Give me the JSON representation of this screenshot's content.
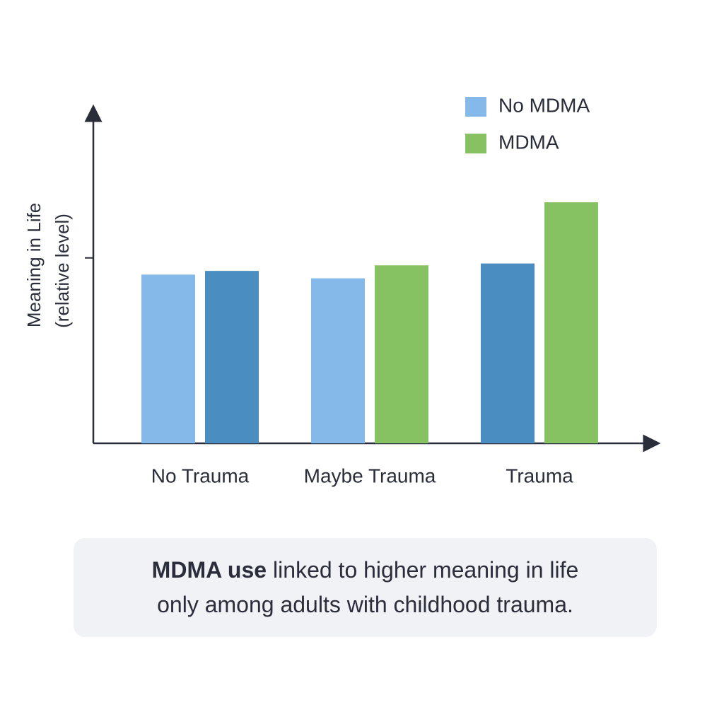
{
  "chart_data": {
    "type": "bar",
    "y_label": [
      "Meaning in Life",
      "(relative level)"
    ],
    "categories": [
      "No Trauma",
      "Maybe Trauma",
      "Trauma"
    ],
    "series": [
      {
        "name": "No MDMA",
        "color": "#85b9ea",
        "colors": [
          "#85b9ea",
          "#85b9ea",
          "#4a8dc1"
        ],
        "values": [
          0.91,
          0.89,
          0.97
        ]
      },
      {
        "name": "MDMA",
        "color": "#86c262",
        "colors": [
          "#4a8dc1",
          "#86c262",
          "#86c262"
        ],
        "values": [
          0.93,
          0.96,
          1.3
        ]
      }
    ],
    "ylim": [
      0,
      1.8
    ],
    "yticks": [
      1
    ],
    "legend": "top-right"
  },
  "caption": {
    "bold": "MDMA use",
    "lines": [
      "linked to higher meaning in life",
      "only among adults with childhood trauma."
    ]
  }
}
